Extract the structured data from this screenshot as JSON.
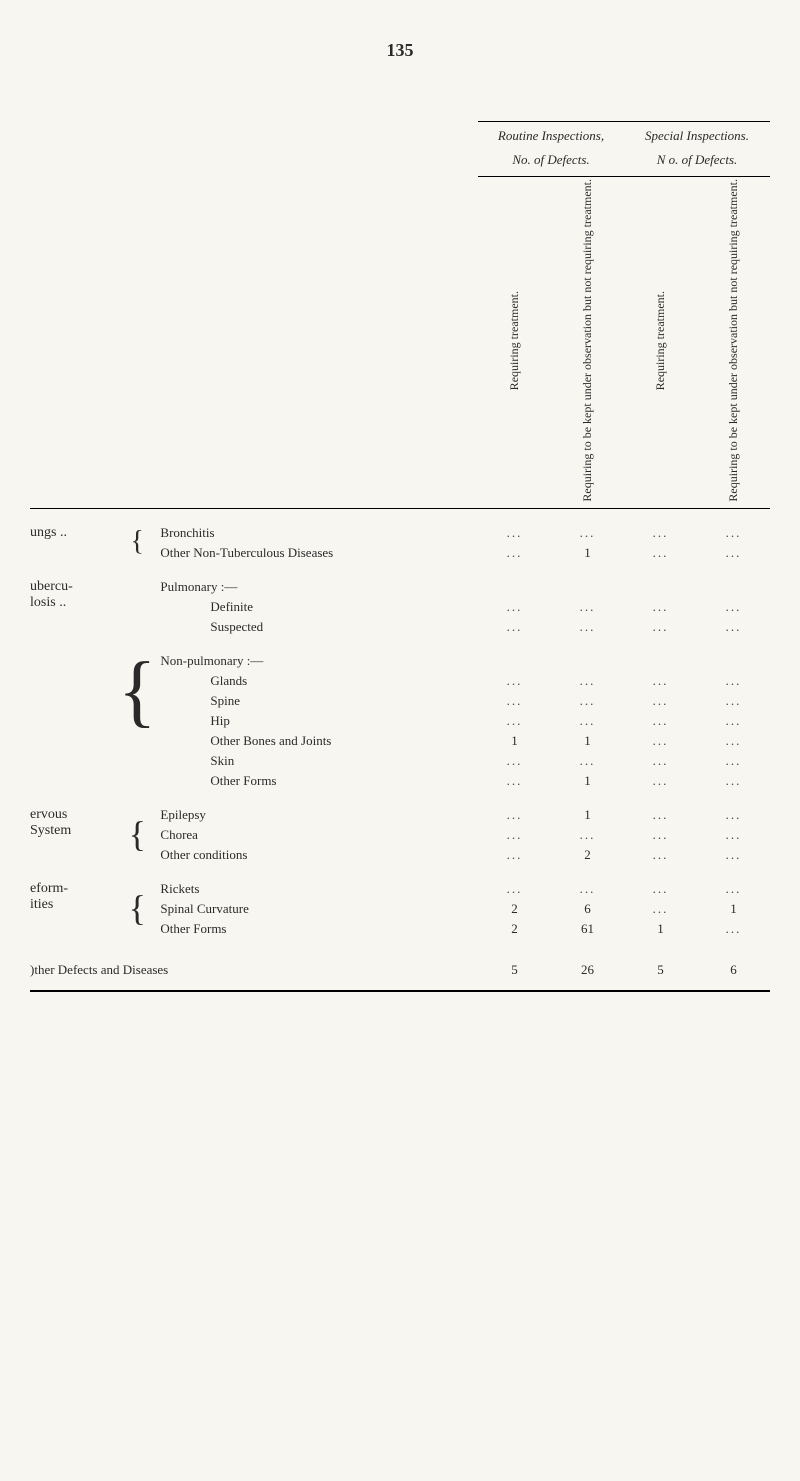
{
  "page_number": "135",
  "header": {
    "routine_title": "Routine Inspections,",
    "special_title": "Special Inspections.",
    "routine_sub": "No. of Defects.",
    "special_sub": "N o. of Defects.",
    "col1": "Requiring treatment.",
    "col2": "Requiring to be kept under observation but not requiring treatment.",
    "col3": "Requiring treatment.",
    "col4": "Requiring to be kept under observation but not requiring treatment."
  },
  "cats": {
    "lungs": "ungs",
    "tubercu": "ubercu-",
    "losis": "losis",
    "nervous": "ervous",
    "system": "System",
    "deform": "eform-",
    "ities": "ities"
  },
  "rows": {
    "bronchitis": "Bronchitis",
    "other_non_tb": "Other Non-Tuberculous Diseases",
    "pulmonary": "Pulmonary :—",
    "definite": "Definite",
    "suspected": "Suspected",
    "non_pulmonary": "Non-pulmonary :—",
    "glands": "Glands",
    "spine": "Spine",
    "hip": "Hip",
    "other_bones": "Other Bones and Joints",
    "skin": "Skin",
    "other_forms": "Other Forms",
    "epilepsy": "Epilepsy",
    "chorea": "Chorea",
    "other_cond": "Other conditions",
    "rickets": "Rickets",
    "spinal_curv": "Spinal Curvature",
    "other_forms2": "Other Forms",
    "total": ")ther Defects and Diseases"
  },
  "vals": {
    "other_non_tb_c2": "1",
    "other_bones_c1": "1",
    "other_bones_c2": "1",
    "other_forms_c2": "1",
    "epilepsy_c2": "1",
    "other_cond_c2": "2",
    "spinal_c1": "2",
    "spinal_c2": "6",
    "spinal_c4": "1",
    "oforms2_c1": "2",
    "oforms2_c2": "61",
    "oforms2_c3": "1",
    "total_c1": "5",
    "total_c2": "26",
    "total_c3": "5",
    "total_c4": "6"
  },
  "dots": "..."
}
